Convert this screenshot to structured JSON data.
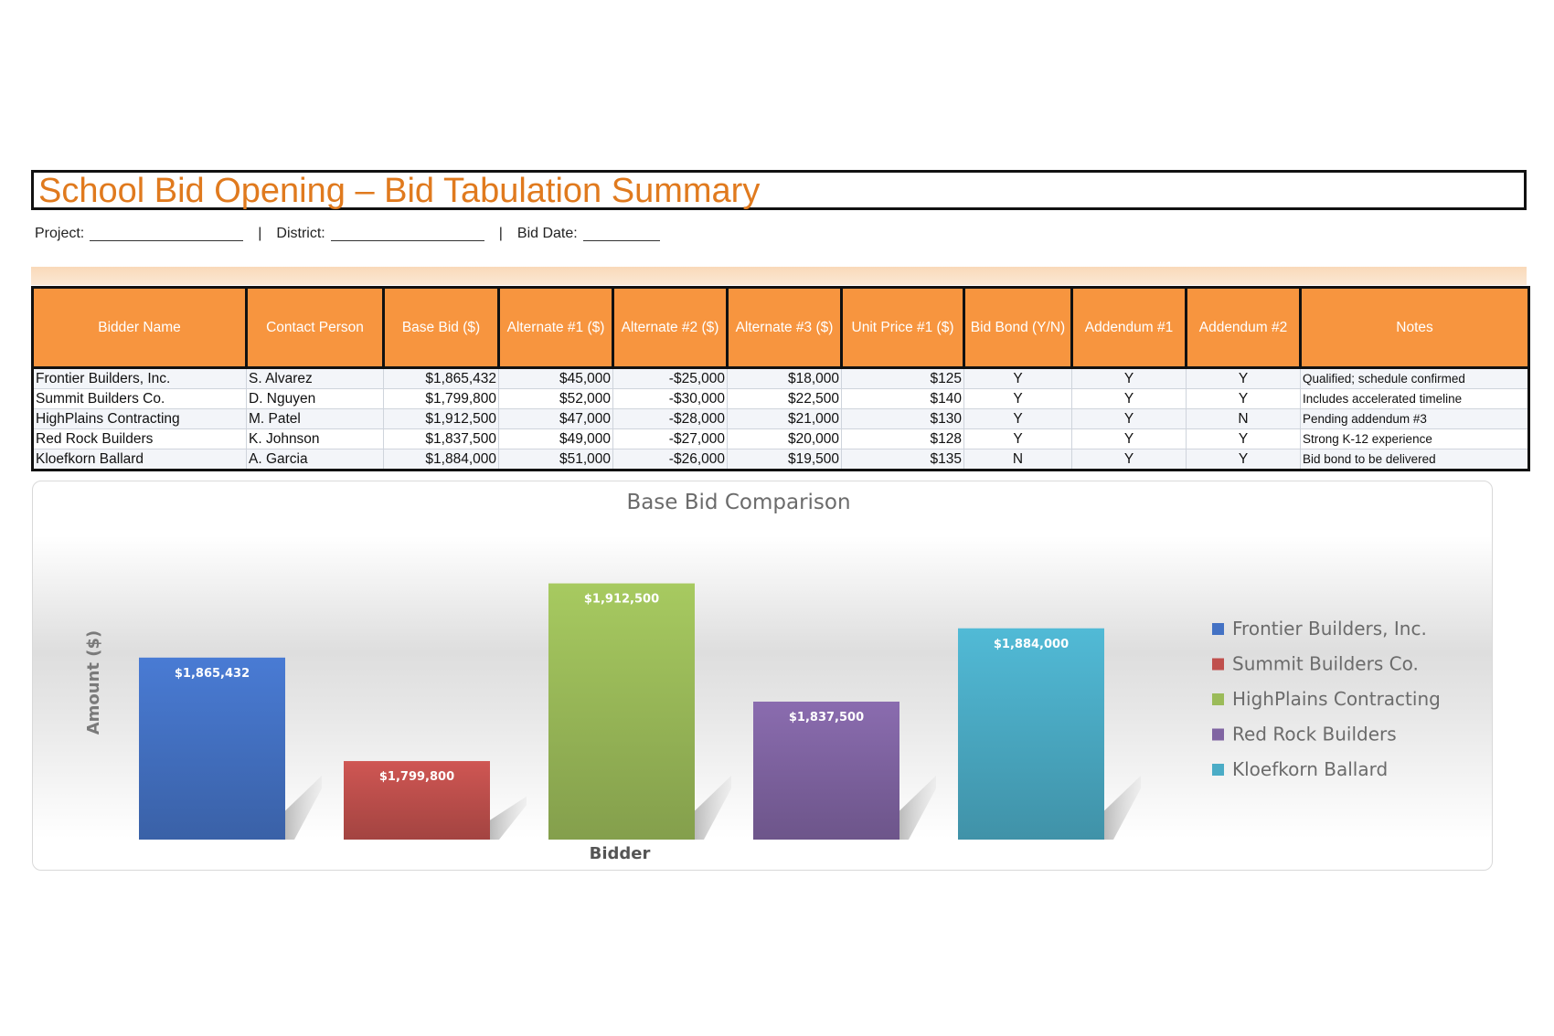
{
  "header": {
    "title": "School Bid Opening – Bid Tabulation Summary",
    "project_label": "Project:",
    "district_label": "District:",
    "bid_date_label": "Bid Date:",
    "separator": "|"
  },
  "table": {
    "columns": [
      "Bidder Name",
      "Contact Person",
      "Base Bid ($)",
      "Alternate #1 ($)",
      "Alternate #2 ($)",
      "Alternate #3 ($)",
      "Unit Price #1 ($)",
      "Bid Bond (Y/N)",
      "Addendum #1",
      "Addendum #2",
      "Notes"
    ],
    "rows": [
      [
        "Frontier Builders, Inc.",
        "S. Alvarez",
        "$1,865,432",
        "$45,000",
        "-$25,000",
        "$18,000",
        "$125",
        "Y",
        "Y",
        "Y",
        "Qualified; schedule confirmed"
      ],
      [
        "Summit Builders Co.",
        "D. Nguyen",
        "$1,799,800",
        "$52,000",
        "-$30,000",
        "$22,500",
        "$140",
        "Y",
        "Y",
        "Y",
        "Includes accelerated timeline"
      ],
      [
        "HighPlains Contracting",
        "M. Patel",
        "$1,912,500",
        "$47,000",
        "-$28,000",
        "$21,000",
        "$130",
        "Y",
        "Y",
        "N",
        "Pending addendum #3"
      ],
      [
        "Red Rock Builders",
        "K. Johnson",
        "$1,837,500",
        "$49,000",
        "-$27,000",
        "$20,000",
        "$128",
        "Y",
        "Y",
        "Y",
        "Strong K-12 experience"
      ],
      [
        "Kloefkorn Ballard",
        "A. Garcia",
        "$1,884,000",
        "$51,000",
        "-$26,000",
        "$19,500",
        "$135",
        "N",
        "Y",
        "Y",
        "Bid bond to be delivered"
      ]
    ]
  },
  "chart_data": {
    "type": "bar",
    "title": "Base Bid Comparison",
    "xlabel": "Bidder",
    "ylabel": "Amount ($)",
    "categories": [
      "Frontier Builders, Inc.",
      "Summit Builders Co.",
      "HighPlains Contracting",
      "Red Rock Builders",
      "Kloefkorn Ballard"
    ],
    "values": [
      1865432,
      1799800,
      1912500,
      1837500,
      1884000
    ],
    "data_labels": [
      "$1,865,432",
      "$1,799,800",
      "$1,912,500",
      "$1,837,500",
      "$1,884,000"
    ],
    "colors": [
      "#4472c4",
      "#c0504d",
      "#9bbb59",
      "#8064a2",
      "#4bacc6"
    ],
    "ylim": [
      1750000,
      1925000
    ],
    "grid": false,
    "legend_position": "right"
  }
}
